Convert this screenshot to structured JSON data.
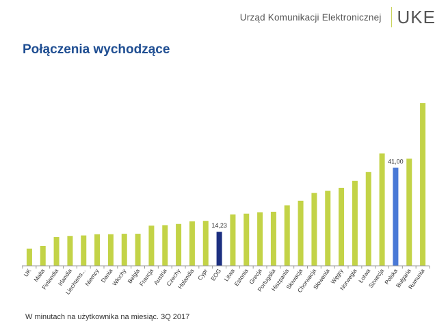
{
  "header": {
    "org_name": "Urząd Komunikacji Elektronicznej",
    "logo_text": "UKE"
  },
  "title": "Połączenia wychodzące",
  "footnote": "W minutach na użytkownika na miesiąc. 3Q 2017",
  "colors": {
    "default": "#c3d347",
    "eog": "#1c2f80",
    "polska": "#4a79d6",
    "axis": "#999999",
    "title": "#1f4e92"
  },
  "chart_data": {
    "type": "bar",
    "title": "Połączenia wychodzące",
    "xlabel": "",
    "ylabel": "",
    "ylim": [
      0,
      86
    ],
    "grid": false,
    "categories": [
      "UK",
      "Malta",
      "Finlandia",
      "Irlandia",
      "Liechtens...",
      "Niemcy",
      "Dania",
      "Włochy",
      "Belgia",
      "Francja",
      "Austria",
      "Czechy",
      "Holandia",
      "Cypr",
      "EOG",
      "Litwa",
      "Estonia",
      "Grecja",
      "Portugalia",
      "Hiszpania",
      "Słowacja",
      "Chorwacja",
      "Słowenia",
      "Węgry",
      "Norwegia",
      "Łotwa",
      "Szwecja",
      "Polska",
      "Bułgaria",
      "Rumunia"
    ],
    "values": [
      7.2,
      8.3,
      12.0,
      12.5,
      12.7,
      13.2,
      13.2,
      13.4,
      13.4,
      16.8,
      17.0,
      17.5,
      18.6,
      18.8,
      14.23,
      21.5,
      21.8,
      22.4,
      22.6,
      25.3,
      27.2,
      30.5,
      31.4,
      32.6,
      35.5,
      39.2,
      47.0,
      41.0,
      44.8,
      68.0
    ],
    "highlight": {
      "EOG": "eog",
      "Polska": "polska"
    },
    "data_labels": [
      {
        "category": "EOG",
        "text": "14,23"
      },
      {
        "category": "Polska",
        "text": "41,00"
      }
    ]
  }
}
